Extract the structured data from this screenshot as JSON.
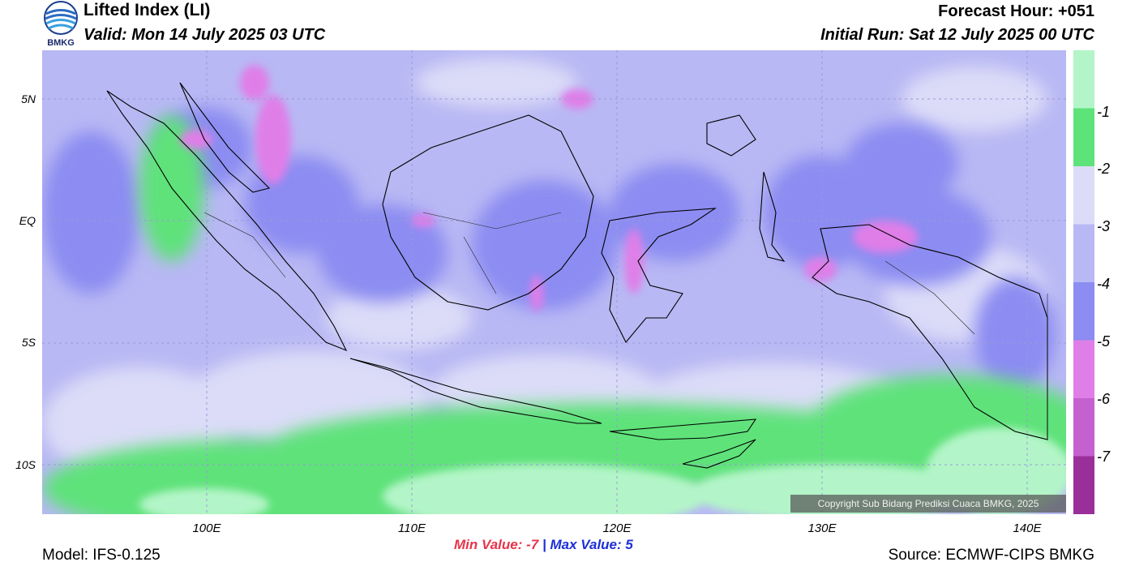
{
  "header": {
    "title": "Lifted Index (LI)",
    "valid": "Valid: Mon 14 July 2025 03 UTC",
    "forecast_hour": "Forecast Hour: +051",
    "initial_run": "Initial Run: Sat 12 July 2025 00 UTC",
    "logo_text": "BMKG"
  },
  "map": {
    "lat_ticks": [
      "5N",
      "EQ",
      "5S",
      "10S"
    ],
    "lon_ticks": [
      "100E",
      "110E",
      "120E",
      "130E",
      "140E"
    ],
    "lat_range": [
      -12,
      7
    ],
    "lon_range": [
      92,
      142
    ]
  },
  "colorbar": {
    "labels": [
      "-1",
      "-2",
      "-3",
      "-4",
      "-5",
      "-6",
      "-7"
    ],
    "colors": [
      "#b3f5c8",
      "#5ee27a",
      "#dcdcf8",
      "#b8b8f4",
      "#8c8cf2",
      "#e07ee8",
      "#c560cf",
      "#9a2f99"
    ]
  },
  "footer": {
    "min_label": "Min Value:",
    "min_value": "-7",
    "separator": "|",
    "max_label": "Max Value:",
    "max_value": "5",
    "model": "Model: IFS-0.125",
    "source": "Source: ECMWF-CIPS BMKG",
    "copyright": "Copyright Sub Bidang Prediksi Cuaca BMKG, 2025"
  }
}
